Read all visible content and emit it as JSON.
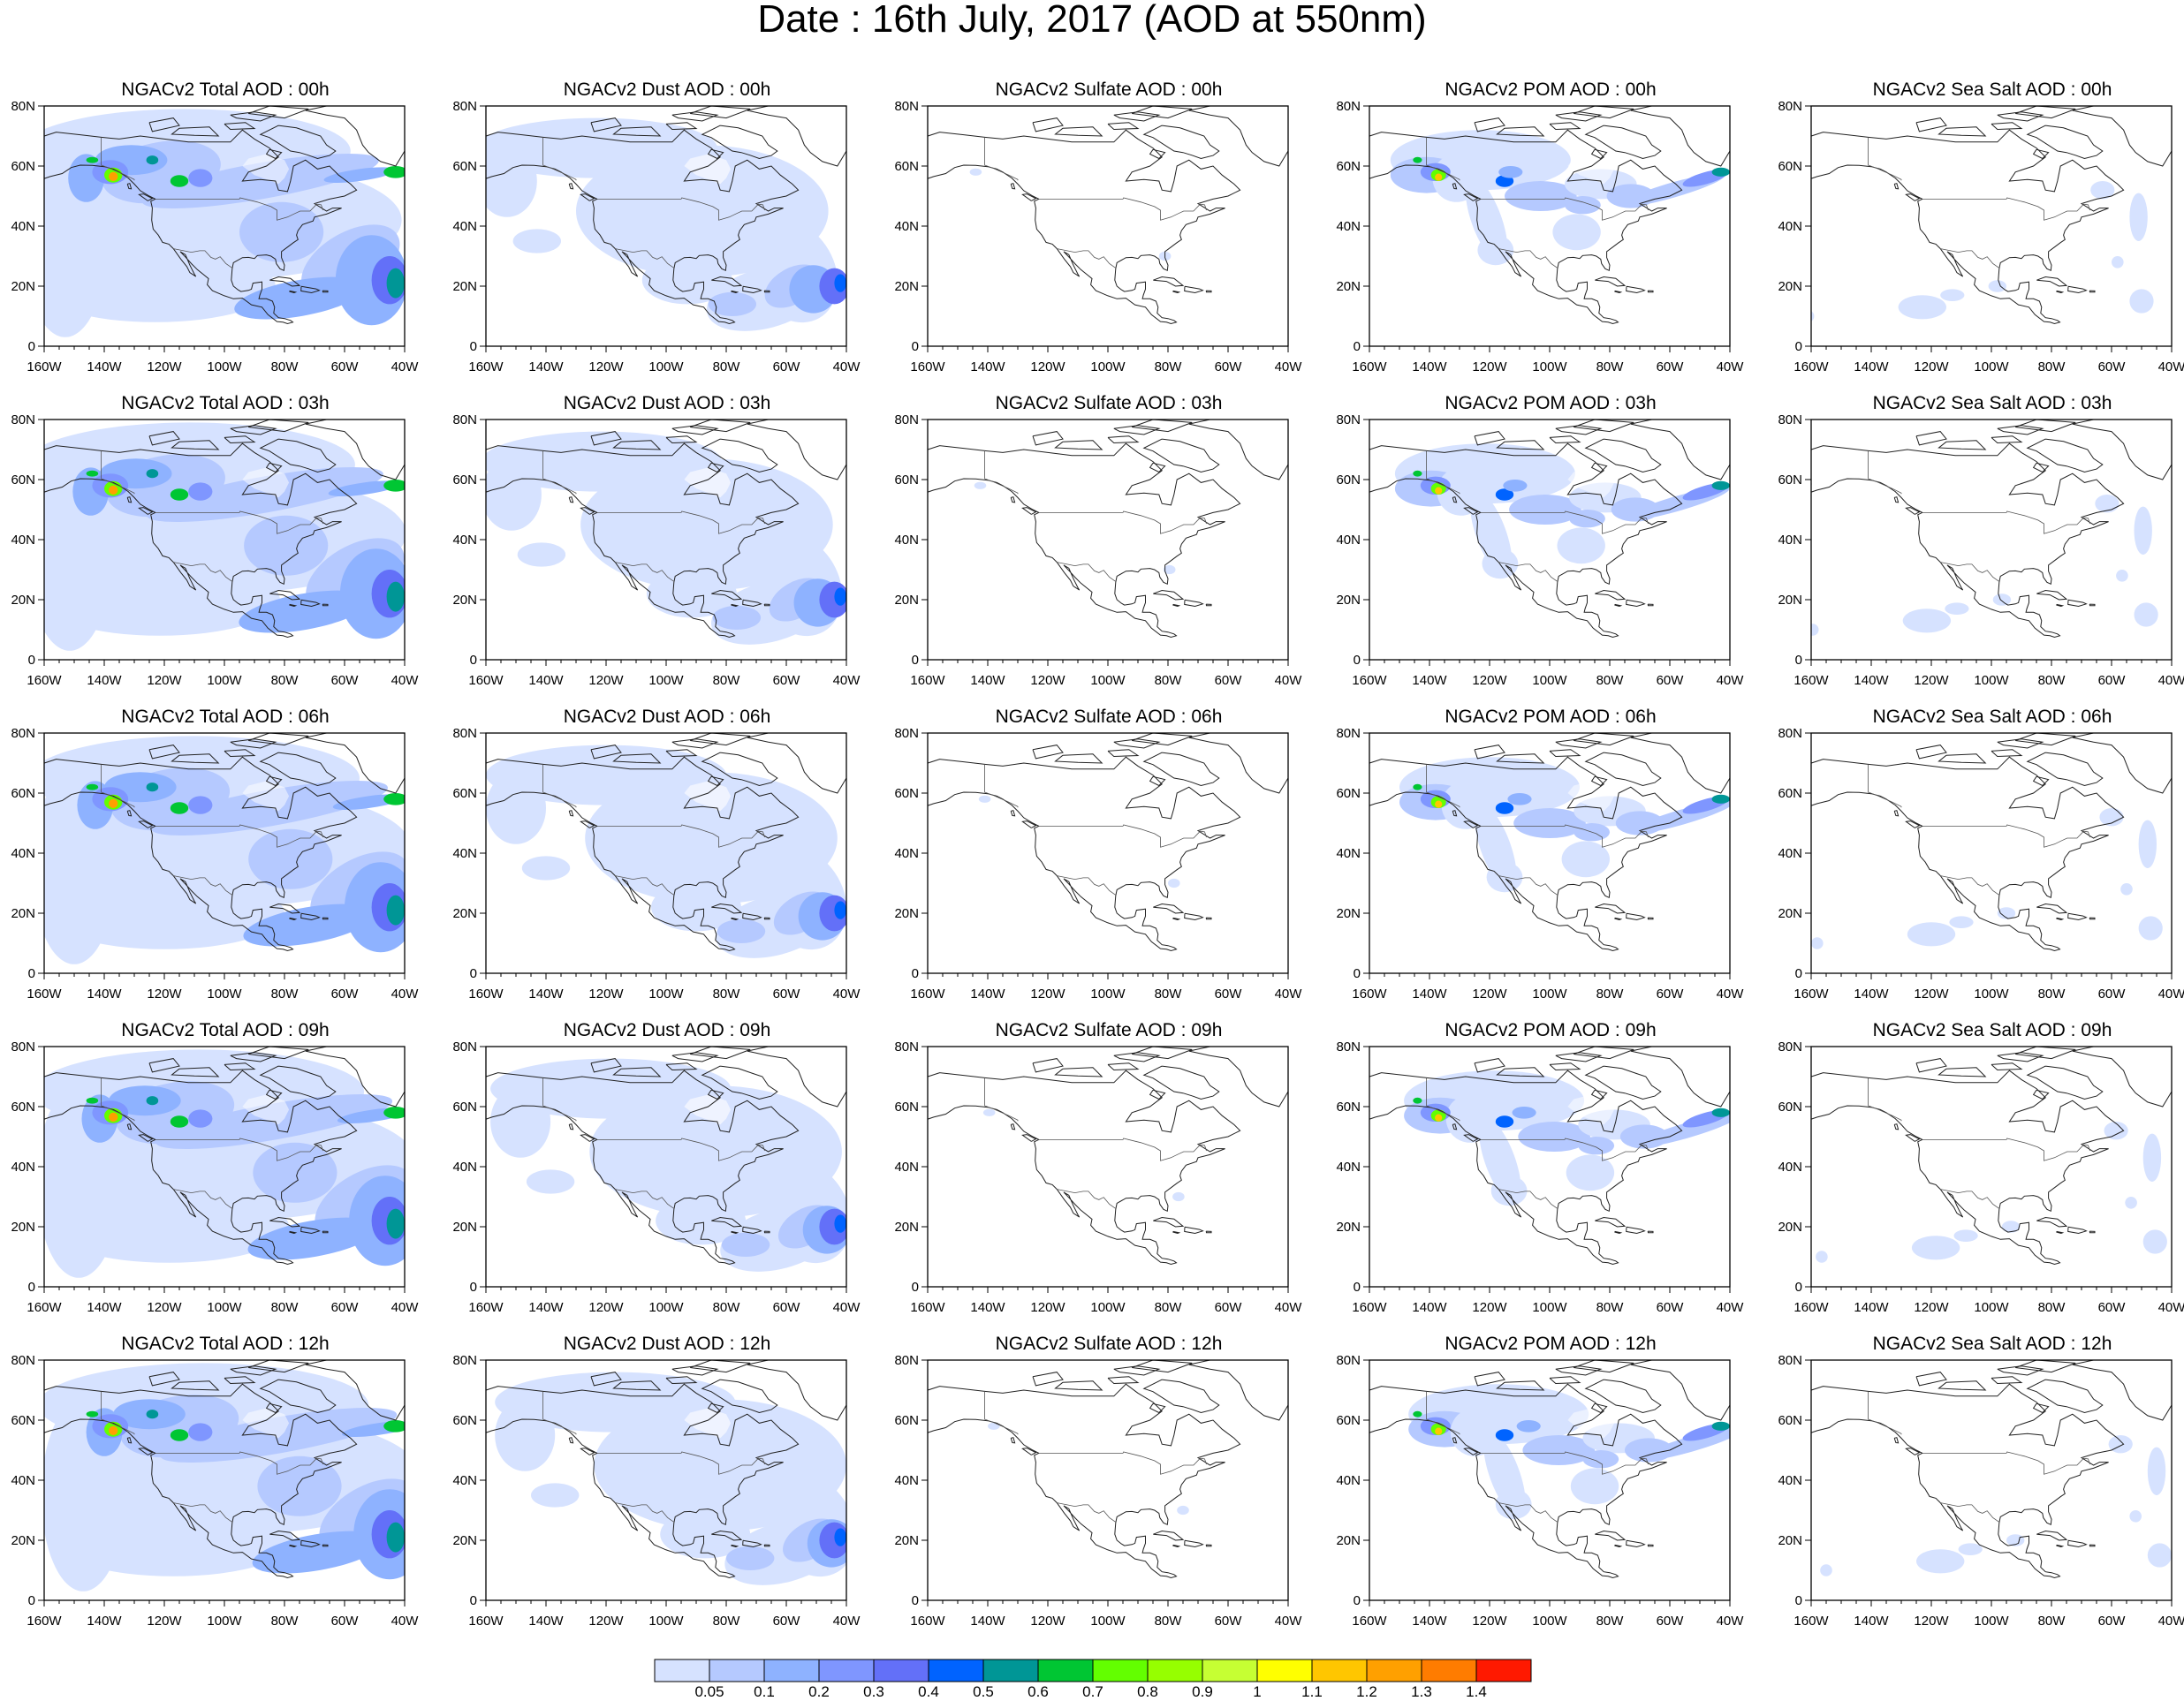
{
  "title": "Date : 16th July, 2017 (AOD at 550nm)",
  "map": {
    "lat_range": [
      0,
      80
    ],
    "lon_range": [
      -160,
      -40
    ],
    "lat_ticks": [
      "0",
      "20N",
      "40N",
      "60N",
      "80N"
    ],
    "lon_ticks": [
      "160W",
      "140W",
      "120W",
      "100W",
      "80W",
      "60W",
      "40W"
    ]
  },
  "columns": [
    {
      "species": "total",
      "titles": [
        "NGACv2 Total AOD : 00h",
        "NGACv2 Total AOD : 03h",
        "NGACv2 Total AOD : 06h",
        "NGACv2 Total AOD : 09h",
        "NGACv2 Total AOD  : 12h"
      ]
    },
    {
      "species": "dust",
      "titles": [
        "NGACv2 Dust AOD : 00h",
        "NGACv2 Dust AOD : 03h",
        "NGACv2 Dust AOD : 06h",
        "NGACv2 Dust AOD : 09h",
        "NGACv2 Dust AOD : 12h"
      ]
    },
    {
      "species": "sulfate",
      "titles": [
        "NGACv2 Sulfate AOD : 00h",
        "NGACv2 Sulfate AOD : 03h",
        "NGACv2 Sulfate AOD : 06h",
        "NGACv2 Sulfate AOD : 09h",
        "NGACv2 Sulfate AOD : 12h"
      ]
    },
    {
      "species": "pom",
      "titles": [
        "NGACv2 POM AOD : 00h",
        "NGACv2 POM AOD : 03h",
        "NGACv2 POM AOD : 06h",
        "NGACv2 POM AOD : 09h",
        "NGACv2 POM  AOD : 12h"
      ]
    },
    {
      "species": "seasalt",
      "titles": [
        "NGACv2 Sea Salt AOD : 00h",
        "NGACv2 Sea Salt AOD : 03h",
        "NGACv2 Sea Salt AOD : 06h",
        "NGACv2 Sea Salt  AOD : 09h",
        "NGACv2 Sea Salt  AOD : 12h"
      ]
    }
  ],
  "colorbar": {
    "labels": [
      "0.05",
      "0.1",
      "0.2",
      "0.3",
      "0.4",
      "0.5",
      "0.6",
      "0.7",
      "0.8",
      "0.9",
      "1",
      "1.1",
      "1.2",
      "1.3",
      "1.4"
    ],
    "colors": [
      "#ffffff",
      "#d6e2ff",
      "#b5c9ff",
      "#8eb2ff",
      "#7f96ff",
      "#6370f8",
      "#0063ff",
      "#009696",
      "#00c633",
      "#63ff00",
      "#96ff00",
      "#c6ff33",
      "#ffff00",
      "#ffc600",
      "#ffa000",
      "#ff7c00",
      "#ff1900"
    ]
  }
}
